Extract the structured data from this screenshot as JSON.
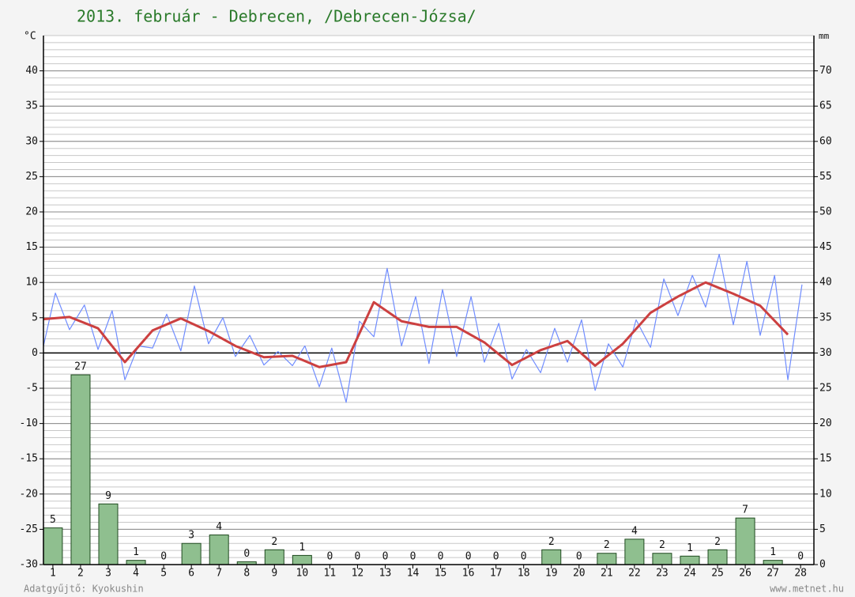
{
  "chart_data": {
    "type": "combo",
    "title": "2013. február - Debrecen, /Debrecen-Józsa/",
    "ylabel": "°C",
    "y2label": "mm",
    "xlim": [
      0.66,
      28.48
    ],
    "xticks": [
      1,
      2,
      3,
      4,
      5,
      6,
      7,
      8,
      9,
      10,
      11,
      12,
      13,
      14,
      15,
      16,
      17,
      18,
      19,
      20,
      21,
      22,
      23,
      24,
      25,
      26,
      27,
      28
    ],
    "ylim": [
      -30,
      45
    ],
    "yticks": [
      -30,
      -25,
      -20,
      -15,
      -10,
      -5,
      0,
      5,
      10,
      15,
      20,
      25,
      30,
      35,
      40
    ],
    "y2lim": [
      0,
      75
    ],
    "y2ticks": [
      0,
      5,
      10,
      15,
      20,
      25,
      30,
      35,
      40,
      45,
      50,
      55,
      60,
      65,
      70
    ],
    "minor_grid_step": 1,
    "grid": true,
    "series": [
      {
        "type": "bar",
        "axis": "y2",
        "color": "#8fbf8f",
        "x": [
          1,
          2,
          3,
          4,
          5,
          6,
          7,
          8,
          9,
          10,
          11,
          12,
          13,
          14,
          15,
          16,
          17,
          18,
          19,
          20,
          21,
          22,
          23,
          24,
          25,
          26,
          27,
          28
        ],
        "values": [
          5.2,
          26.9,
          8.6,
          0.6,
          0,
          3.0,
          4.2,
          0.4,
          2.1,
          1.3,
          0,
          0,
          0,
          0,
          0,
          0,
          0,
          0,
          2.1,
          0,
          1.6,
          3.6,
          1.6,
          1.2,
          2.1,
          6.6,
          0.6,
          0
        ],
        "value_labels": [
          "5",
          "27",
          "9",
          "1",
          "0",
          "3",
          "4",
          "0",
          "2",
          "1",
          "0",
          "0",
          "0",
          "0",
          "0",
          "0",
          "0",
          "0",
          "2",
          "0",
          "2",
          "4",
          "2",
          "1",
          "2",
          "7",
          "1",
          "0"
        ]
      },
      {
        "type": "line",
        "color": "#6f8cff",
        "width": 1.2,
        "x": [
          0.66,
          1.09,
          1.6,
          2.14,
          2.63,
          3.14,
          3.6,
          4.08,
          4.6,
          5.11,
          5.62,
          6.11,
          6.62,
          7.14,
          7.59,
          8.11,
          8.62,
          9.13,
          9.65,
          10.1,
          10.62,
          11.07,
          11.59,
          12.07,
          12.59,
          13.07,
          13.59,
          14.1,
          14.58,
          15.07,
          15.58,
          16.1,
          16.58,
          17.1,
          17.58,
          18.1,
          18.61,
          19.12,
          19.58,
          20.09,
          20.58,
          21.06,
          21.58,
          22.06,
          22.58,
          23.06,
          23.57,
          24.09,
          24.57,
          25.06,
          25.57,
          26.06,
          26.54,
          27.06,
          27.54,
          28.05
        ],
        "values": [
          1,
          8.5,
          3.3,
          6.8,
          0.5,
          6,
          -3.8,
          1,
          0.7,
          5.5,
          0.3,
          9.5,
          1.3,
          5,
          -0.5,
          2.5,
          -1.7,
          0.2,
          -1.8,
          1,
          -4.8,
          0.7,
          -7,
          4.5,
          2.3,
          12,
          1,
          8,
          -1.5,
          9,
          -0.5,
          8,
          -1.3,
          4.2,
          -3.7,
          0.5,
          -2.8,
          3.5,
          -1.3,
          4.7,
          -5.3,
          1.3,
          -2,
          4.7,
          0.8,
          10.5,
          5.3,
          11,
          6.5,
          14,
          4,
          13,
          2.5,
          11,
          -3.8,
          9.7
        ]
      },
      {
        "type": "line",
        "color": "#cc4040",
        "width": 3,
        "x": [
          0.66,
          1.6,
          2.63,
          3.6,
          4.6,
          5.62,
          6.62,
          7.59,
          8.62,
          9.65,
          10.62,
          11.59,
          12.59,
          13.59,
          14.58,
          15.58,
          16.58,
          17.58,
          18.61,
          19.58,
          20.58,
          21.58,
          22.58,
          23.57,
          24.57,
          25.57,
          26.54,
          27.54
        ],
        "values": [
          4.8,
          5.1,
          3.5,
          -1.3,
          3.2,
          4.9,
          3.1,
          1.0,
          -0.6,
          -0.4,
          -2.0,
          -1.3,
          7.2,
          4.5,
          3.7,
          3.7,
          1.5,
          -1.7,
          0.4,
          1.7,
          -1.8,
          1.3,
          5.7,
          8.0,
          10.0,
          8.4,
          6.7,
          2.6
        ]
      }
    ],
    "footer_left": "Adatgyűjtő: Kyokushin",
    "footer_right": "www.metnet.hu"
  }
}
